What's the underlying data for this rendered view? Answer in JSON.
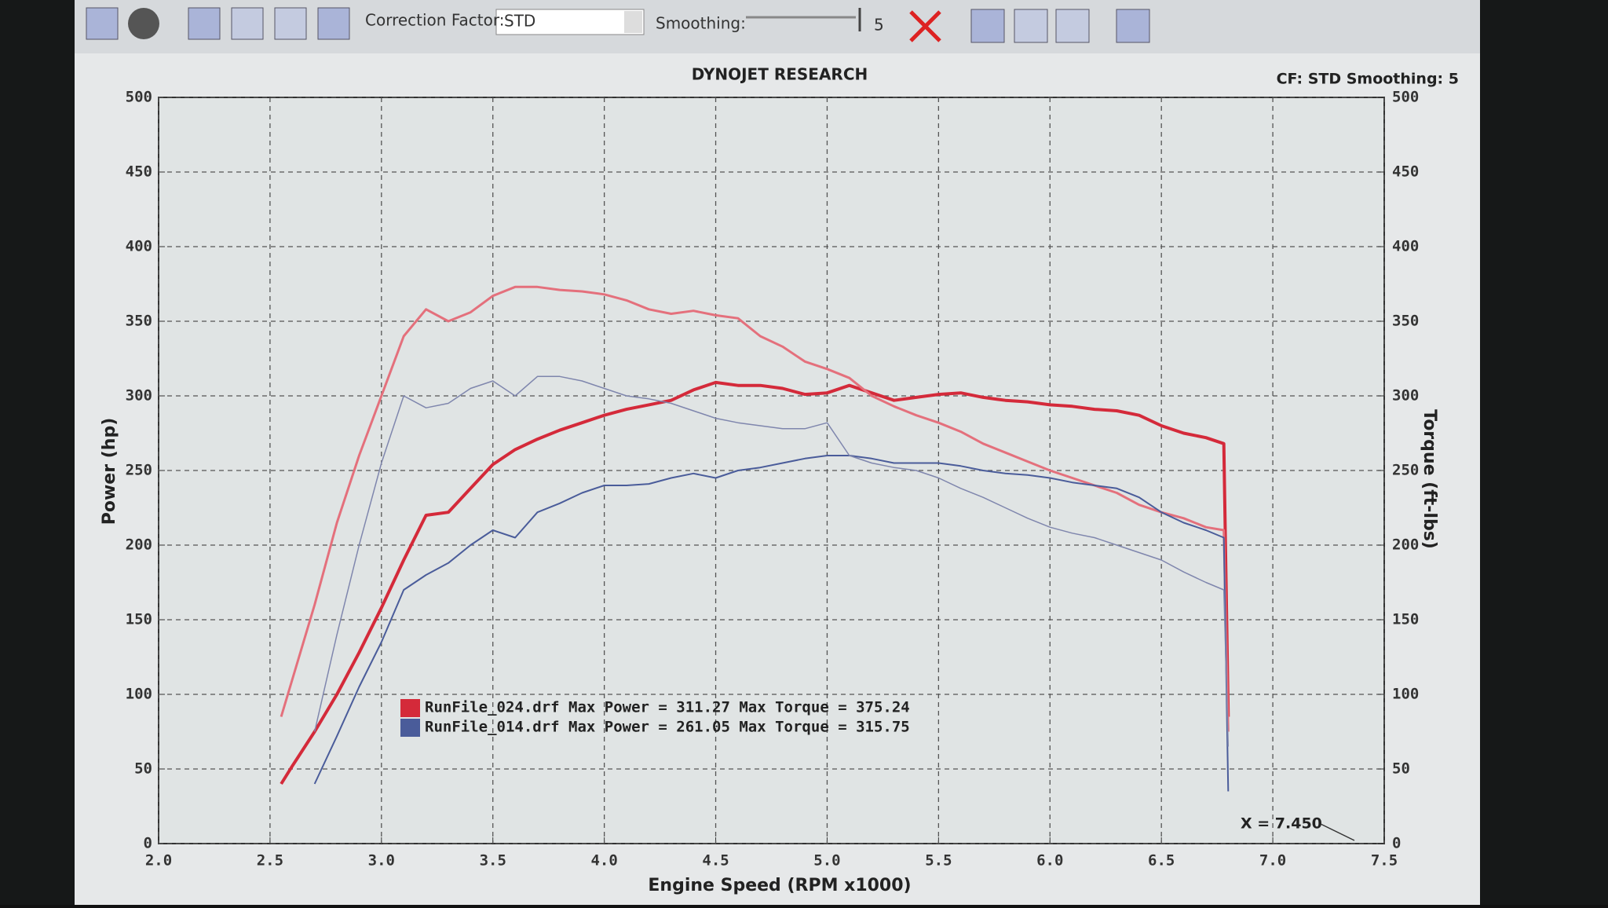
{
  "toolbar": {
    "correction_factor_label": "Correction Factor:",
    "correction_factor": "STD",
    "smoothing_label": "Smoothing:",
    "smoothing": 5
  },
  "chart_data": {
    "type": "line",
    "title": "DYNOJET RESEARCH",
    "subtitle": "CF: STD  Smoothing: 5",
    "x_label": "Engine Speed (RPM x1000)",
    "y_label": "Power (hp)",
    "y2_label": "Torque (ft-lbs)",
    "annotation": "X = 7.450",
    "x": [
      2.55,
      2.6,
      2.7,
      2.8,
      2.9,
      3.0,
      3.1,
      3.2,
      3.3,
      3.4,
      3.5,
      3.6,
      3.7,
      3.8,
      3.9,
      4.0,
      4.1,
      4.2,
      4.3,
      4.4,
      4.5,
      4.6,
      4.7,
      4.8,
      4.9,
      5.0,
      5.1,
      5.2,
      5.3,
      5.4,
      5.5,
      5.6,
      5.7,
      5.8,
      5.9,
      6.0,
      6.1,
      6.2,
      6.3,
      6.4,
      6.5,
      6.6,
      6.7,
      6.78,
      6.8
    ],
    "series": [
      {
        "color": "#d42a3a",
        "width": 4,
        "axis": "y",
        "values": [
          40,
          52,
          75,
          100,
          128,
          158,
          190,
          220,
          222,
          238,
          254,
          264,
          271,
          277,
          282,
          287,
          291,
          294,
          297,
          304,
          309,
          307,
          307,
          305,
          301,
          302,
          307,
          302,
          297,
          299,
          301,
          302,
          299,
          297,
          296,
          294,
          293,
          291,
          290,
          287,
          280,
          275,
          272,
          268,
          85
        ]
      },
      {
        "color": "#e4707c",
        "width": 3,
        "axis": "y2",
        "values": [
          85,
          110,
          160,
          215,
          260,
          300,
          340,
          358,
          350,
          356,
          367,
          373,
          373,
          371,
          370,
          368,
          364,
          358,
          355,
          357,
          354,
          352,
          340,
          333,
          323,
          318,
          312,
          300,
          293,
          287,
          282,
          276,
          268,
          262,
          256,
          250,
          245,
          240,
          235,
          227,
          222,
          218,
          212,
          210,
          75
        ]
      },
      {
        "color": "#4a5c9a",
        "width": 2,
        "axis": "y",
        "values": [
          null,
          null,
          40,
          72,
          105,
          135,
          170,
          180,
          188,
          200,
          210,
          205,
          222,
          228,
          235,
          240,
          240,
          241,
          245,
          248,
          245,
          250,
          252,
          255,
          258,
          260,
          260,
          258,
          255,
          255,
          255,
          253,
          250,
          248,
          247,
          245,
          242,
          240,
          238,
          232,
          222,
          215,
          210,
          205,
          35
        ]
      },
      {
        "color": "#7f86ad",
        "width": 1.5,
        "axis": "y2",
        "values": [
          null,
          null,
          75,
          140,
          200,
          255,
          300,
          292,
          295,
          305,
          310,
          300,
          313,
          313,
          310,
          305,
          300,
          298,
          295,
          290,
          285,
          282,
          280,
          278,
          278,
          282,
          260,
          255,
          252,
          250,
          245,
          238,
          232,
          225,
          218,
          212,
          208,
          205,
          200,
          195,
          190,
          182,
          175,
          170,
          65
        ]
      }
    ],
    "legend": [
      {
        "label": "RunFile_024.drf Max Power = 311.27 Max Torque = 375.24",
        "color": "#d42a3a"
      },
      {
        "label": "RunFile_014.drf Max Power = 261.05 Max Torque = 315.75",
        "color": "#4a5c9a"
      }
    ],
    "xlim": [
      2,
      7.5
    ],
    "xticks": [
      {
        "value": 2,
        "label": "2.0"
      },
      2.5,
      {
        "value": 3,
        "label": "3.0"
      },
      3.5,
      {
        "value": 4,
        "label": "4.0"
      },
      4.5,
      {
        "value": 5,
        "label": "5.0"
      },
      5.5,
      {
        "value": 6,
        "label": "6.0"
      },
      6.5,
      {
        "value": 7,
        "label": "7.0"
      },
      7.5
    ],
    "ylim": [
      0,
      500
    ],
    "yticks": [
      0,
      50,
      100,
      150,
      200,
      250,
      300,
      350,
      400,
      450,
      500
    ],
    "y2lim": [
      0,
      500
    ],
    "y2ticks": [
      0,
      50,
      100,
      150,
      200,
      250,
      300,
      350,
      400,
      450,
      500
    ],
    "grid": true
  }
}
